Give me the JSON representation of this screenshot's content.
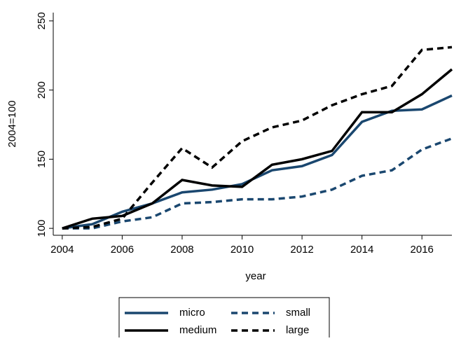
{
  "chart_data": {
    "type": "line",
    "x_label": "year",
    "y_label": "2004=100",
    "x": [
      2004,
      2005,
      2006,
      2007,
      2008,
      2009,
      2010,
      2011,
      2012,
      2013,
      2014,
      2015,
      2016,
      2017
    ],
    "series": [
      {
        "name": "micro",
        "color": "#1a476f",
        "line_style": "solid",
        "values": [
          100,
          103,
          112,
          118,
          126,
          128,
          132,
          142,
          145,
          153,
          177,
          185,
          186,
          196
        ]
      },
      {
        "name": "small",
        "color": "#1a476f",
        "line_style": "dashed",
        "values": [
          100,
          100,
          105,
          108,
          118,
          119,
          121,
          121,
          123,
          128,
          138,
          142,
          157,
          165
        ]
      },
      {
        "name": "medium",
        "color": "#000000",
        "line_style": "solid",
        "values": [
          100,
          107,
          109,
          118,
          135,
          131,
          130,
          146,
          150,
          156,
          184,
          184,
          197,
          215
        ]
      },
      {
        "name": "large",
        "color": "#000000",
        "line_style": "dashed",
        "values": [
          100,
          101,
          107,
          133,
          158,
          144,
          163,
          173,
          178,
          189,
          197,
          203,
          229,
          231
        ]
      }
    ],
    "xlim": [
      2003.7,
      2017
    ],
    "xticks": [
      2004,
      2006,
      2008,
      2010,
      2012,
      2014,
      2016
    ],
    "ylim": [
      95,
      256
    ],
    "yticks": [
      100,
      150,
      200,
      250
    ],
    "grid": false
  }
}
